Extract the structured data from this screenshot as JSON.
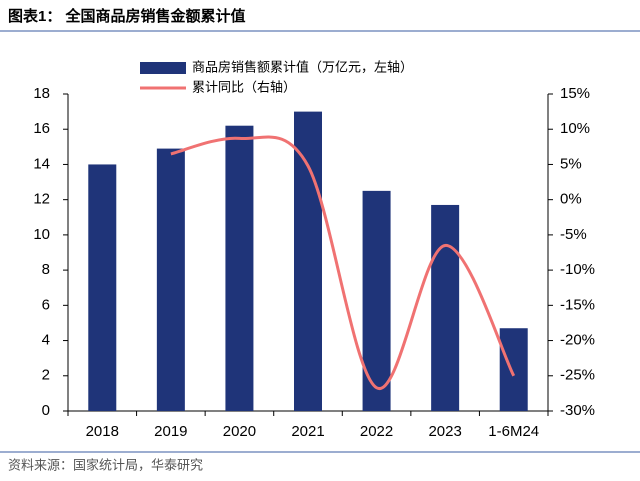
{
  "header": {
    "title": "图表1：  全国商品房销售金额累计值"
  },
  "chart_data": {
    "type": "bar-line",
    "categories": [
      "2018",
      "2019",
      "2020",
      "2021",
      "2022",
      "2023",
      "1-6M24"
    ],
    "series": [
      {
        "name": "商品房销售额累计值（万亿元，左轴）",
        "color": "#1f3479",
        "type": "bar",
        "values": [
          14.0,
          14.9,
          16.2,
          17.0,
          12.5,
          11.7,
          4.7
        ]
      },
      {
        "name": "累计同比（右轴）",
        "color": "#f07272",
        "type": "line",
        "axis": "y2",
        "values": [
          null,
          6.5,
          8.7,
          4.8,
          -26.7,
          -6.5,
          -25.0
        ]
      }
    ],
    "ylim": [
      0,
      18
    ],
    "yticks": [
      0,
      2,
      4,
      6,
      8,
      10,
      12,
      14,
      16,
      18
    ],
    "y2lim": [
      -30,
      15
    ],
    "y2ticks": [
      {
        "value": -30,
        "label": "-30%"
      },
      {
        "value": -25,
        "label": "-25%"
      },
      {
        "value": -20,
        "label": "-20%"
      },
      {
        "value": -15,
        "label": "-15%"
      },
      {
        "value": -10,
        "label": "-10%"
      },
      {
        "value": -5,
        "label": "-5%"
      },
      {
        "value": 0,
        "label": "0%"
      },
      {
        "value": 5,
        "label": "5%"
      },
      {
        "value": 10,
        "label": "10%"
      },
      {
        "value": 15,
        "label": "15%"
      }
    ]
  },
  "footer": {
    "source": "资料来源：国家统计局，华泰研究"
  }
}
